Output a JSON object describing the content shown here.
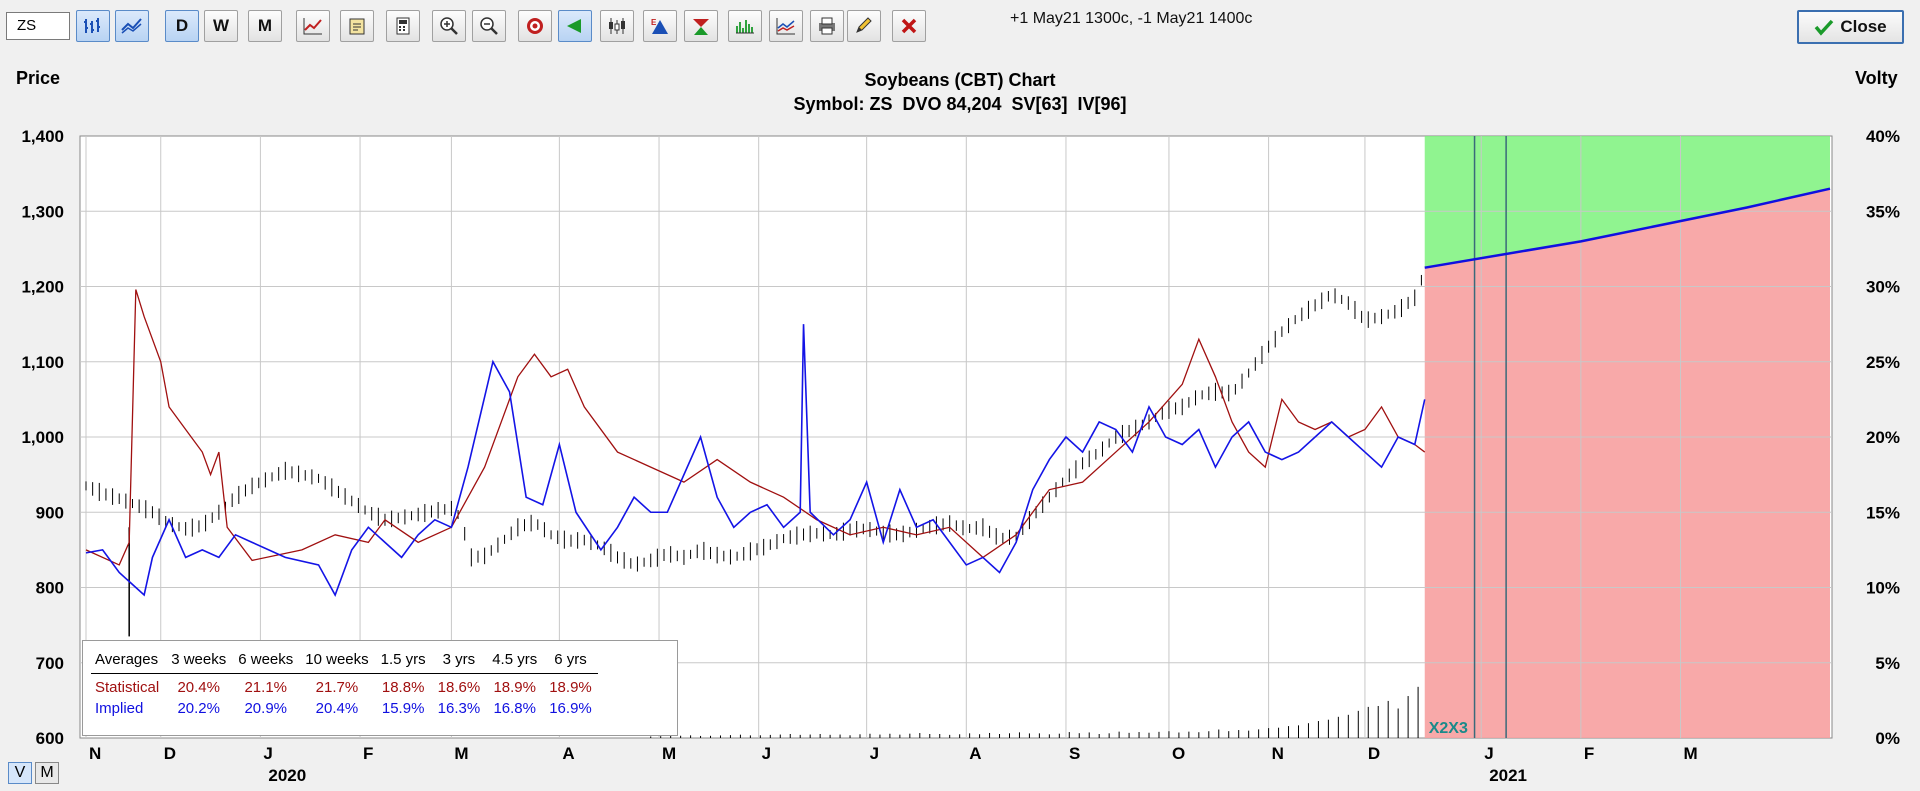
{
  "toolbar": {
    "symbol": "ZS",
    "period_buttons": [
      "D",
      "W",
      "M"
    ],
    "note": "+1 May21 1300c, -1 May21 1400c",
    "close_label": "Close"
  },
  "chart_data": {
    "type": "line",
    "title": "Soybeans (CBT) Chart",
    "subtitle": "Symbol: ZS  DVO 84,204  SV[63]  IV[96]",
    "ylabel": "Price",
    "y2label": "Volty",
    "ylim": [
      600,
      1400
    ],
    "y2lim": [
      0,
      40
    ],
    "y_ticks": [
      "600",
      "700",
      "800",
      "900",
      "1,000",
      "1,100",
      "1,200",
      "1,300",
      "1,400"
    ],
    "y2_ticks": [
      "0%",
      "5%",
      "10%",
      "15%",
      "20%",
      "25%",
      "30%",
      "35%",
      "40%"
    ],
    "x_month_labels": [
      "N",
      "D",
      "J",
      "F",
      "M",
      "A",
      "M",
      "J",
      "J",
      "A",
      "S",
      "O",
      "N",
      "D",
      "J",
      "F",
      "M"
    ],
    "x_year_labels": [
      "2020",
      "2021"
    ],
    "grid": true,
    "price_series": {
      "name": "Price",
      "color": "#000000",
      "points": [
        [
          0,
          935
        ],
        [
          10,
          925
        ],
        [
          20,
          918
        ],
        [
          30,
          910
        ],
        [
          40,
          900
        ],
        [
          50,
          885
        ],
        [
          60,
          878
        ],
        [
          70,
          882
        ],
        [
          80,
          900
        ],
        [
          90,
          920
        ],
        [
          100,
          935
        ],
        [
          110,
          945
        ],
        [
          120,
          955
        ],
        [
          130,
          950
        ],
        [
          140,
          945
        ],
        [
          150,
          930
        ],
        [
          160,
          915
        ],
        [
          170,
          900
        ],
        [
          180,
          890
        ],
        [
          190,
          893
        ],
        [
          200,
          897
        ],
        [
          210,
          902
        ],
        [
          220,
          905
        ],
        [
          225,
          895
        ],
        [
          232,
          840
        ],
        [
          240,
          842
        ],
        [
          250,
          860
        ],
        [
          260,
          880
        ],
        [
          270,
          887
        ],
        [
          280,
          870
        ],
        [
          290,
          862
        ],
        [
          300,
          863
        ],
        [
          310,
          855
        ],
        [
          320,
          840
        ],
        [
          330,
          830
        ],
        [
          340,
          836
        ],
        [
          350,
          845
        ],
        [
          360,
          840
        ],
        [
          370,
          850
        ],
        [
          380,
          843
        ],
        [
          390,
          840
        ],
        [
          400,
          848
        ],
        [
          410,
          855
        ],
        [
          420,
          865
        ],
        [
          430,
          870
        ],
        [
          440,
          872
        ],
        [
          450,
          870
        ],
        [
          460,
          877
        ],
        [
          470,
          878
        ],
        [
          480,
          873
        ],
        [
          490,
          870
        ],
        [
          500,
          876
        ],
        [
          510,
          882
        ],
        [
          520,
          885
        ],
        [
          530,
          878
        ],
        [
          540,
          880
        ],
        [
          550,
          865
        ],
        [
          560,
          868
        ],
        [
          570,
          895
        ],
        [
          580,
          920
        ],
        [
          590,
          945
        ],
        [
          600,
          965
        ],
        [
          610,
          980
        ],
        [
          620,
          1000
        ],
        [
          630,
          1010
        ],
        [
          640,
          1020
        ],
        [
          650,
          1035
        ],
        [
          660,
          1040
        ],
        [
          670,
          1055
        ],
        [
          680,
          1060
        ],
        [
          690,
          1058
        ],
        [
          700,
          1085
        ],
        [
          710,
          1115
        ],
        [
          720,
          1140
        ],
        [
          730,
          1160
        ],
        [
          740,
          1175
        ],
        [
          750,
          1190
        ],
        [
          760,
          1178
        ],
        [
          770,
          1155
        ],
        [
          780,
          1160
        ],
        [
          790,
          1168
        ],
        [
          800,
          1185
        ],
        [
          806,
          1220
        ]
      ]
    },
    "statistical_series": {
      "name": "Statistical",
      "color": "#a01010",
      "points": [
        [
          0,
          12.5
        ],
        [
          20,
          11.5
        ],
        [
          26,
          13
        ],
        [
          30,
          29.8
        ],
        [
          35,
          28
        ],
        [
          45,
          25
        ],
        [
          50,
          22
        ],
        [
          60,
          20.5
        ],
        [
          70,
          19
        ],
        [
          75,
          17.5
        ],
        [
          80,
          19
        ],
        [
          85,
          14
        ],
        [
          100,
          11.8
        ],
        [
          130,
          12.5
        ],
        [
          150,
          13.5
        ],
        [
          170,
          13
        ],
        [
          180,
          14.5
        ],
        [
          200,
          13
        ],
        [
          220,
          14
        ],
        [
          240,
          18
        ],
        [
          260,
          24
        ],
        [
          270,
          25.5
        ],
        [
          280,
          24
        ],
        [
          290,
          24.5
        ],
        [
          300,
          22
        ],
        [
          320,
          19
        ],
        [
          340,
          18
        ],
        [
          360,
          17
        ],
        [
          380,
          18.5
        ],
        [
          400,
          17
        ],
        [
          420,
          16
        ],
        [
          440,
          14.5
        ],
        [
          460,
          13.5
        ],
        [
          480,
          14
        ],
        [
          500,
          13.5
        ],
        [
          520,
          14
        ],
        [
          540,
          12
        ],
        [
          560,
          13.5
        ],
        [
          580,
          16.5
        ],
        [
          600,
          17
        ],
        [
          620,
          19
        ],
        [
          640,
          21
        ],
        [
          660,
          23.5
        ],
        [
          670,
          26.5
        ],
        [
          680,
          24
        ],
        [
          690,
          21
        ],
        [
          700,
          19
        ],
        [
          710,
          18
        ],
        [
          720,
          22.5
        ],
        [
          730,
          21
        ],
        [
          740,
          20.5
        ],
        [
          750,
          21
        ],
        [
          760,
          20
        ],
        [
          770,
          20.5
        ],
        [
          780,
          22
        ],
        [
          790,
          20
        ],
        [
          800,
          19.5
        ],
        [
          806,
          19
        ]
      ]
    },
    "implied_series": {
      "name": "Implied",
      "color": "#1414e6",
      "points": [
        [
          0,
          12.3
        ],
        [
          10,
          12.5
        ],
        [
          20,
          11
        ],
        [
          35,
          9.5
        ],
        [
          40,
          12
        ],
        [
          50,
          14.5
        ],
        [
          60,
          12
        ],
        [
          70,
          12.5
        ],
        [
          80,
          12
        ],
        [
          90,
          13.5
        ],
        [
          100,
          13
        ],
        [
          120,
          12
        ],
        [
          140,
          11.5
        ],
        [
          150,
          9.5
        ],
        [
          160,
          12.5
        ],
        [
          170,
          14
        ],
        [
          180,
          13
        ],
        [
          190,
          12
        ],
        [
          200,
          13.5
        ],
        [
          210,
          14.5
        ],
        [
          220,
          14
        ],
        [
          230,
          18
        ],
        [
          245,
          25
        ],
        [
          255,
          23
        ],
        [
          265,
          16
        ],
        [
          275,
          15.5
        ],
        [
          285,
          19.5
        ],
        [
          295,
          15
        ],
        [
          310,
          12.5
        ],
        [
          320,
          14
        ],
        [
          330,
          16
        ],
        [
          340,
          15
        ],
        [
          350,
          15
        ],
        [
          370,
          20
        ],
        [
          380,
          16
        ],
        [
          390,
          14
        ],
        [
          400,
          15
        ],
        [
          410,
          15.5
        ],
        [
          420,
          14
        ],
        [
          430,
          15
        ],
        [
          432,
          27.5
        ],
        [
          436,
          15
        ],
        [
          450,
          13.5
        ],
        [
          460,
          14.5
        ],
        [
          470,
          17
        ],
        [
          480,
          13
        ],
        [
          490,
          16.5
        ],
        [
          500,
          14
        ],
        [
          510,
          14.5
        ],
        [
          520,
          13
        ],
        [
          530,
          11.5
        ],
        [
          540,
          12
        ],
        [
          550,
          11
        ],
        [
          560,
          13
        ],
        [
          570,
          16.5
        ],
        [
          580,
          18.5
        ],
        [
          590,
          20
        ],
        [
          600,
          19
        ],
        [
          610,
          21
        ],
        [
          620,
          20.5
        ],
        [
          630,
          19
        ],
        [
          640,
          22
        ],
        [
          650,
          20
        ],
        [
          660,
          19.5
        ],
        [
          670,
          20.5
        ],
        [
          680,
          18
        ],
        [
          690,
          20
        ],
        [
          700,
          21
        ],
        [
          710,
          19
        ],
        [
          720,
          18.5
        ],
        [
          730,
          19
        ],
        [
          740,
          20
        ],
        [
          750,
          21
        ],
        [
          760,
          20
        ],
        [
          770,
          19
        ],
        [
          780,
          18
        ],
        [
          790,
          20
        ],
        [
          800,
          19.5
        ],
        [
          806,
          22.5
        ]
      ]
    },
    "projection_series": {
      "name": "Projection",
      "color": "#1010e0",
      "points": [
        [
          806,
          1225
        ],
        [
          900,
          1260
        ],
        [
          1000,
          1305
        ],
        [
          1050,
          1330
        ]
      ]
    },
    "volume_bars": [
      0.15,
      0.2,
      0.18,
      0.25,
      0.22,
      0.3,
      0.28,
      0.26,
      0.3,
      0.32,
      0.35,
      0.3,
      0.33,
      0.38,
      0.4,
      0.35,
      0.42,
      0.38,
      0.45,
      0.5,
      0.48,
      0.55,
      0.6,
      0.7,
      0.9,
      1.2,
      1.6,
      2.2,
      2.8,
      3.4
    ],
    "projection_zone": {
      "colors": {
        "upper": "#7df27d",
        "lower": "#f7a0a0"
      }
    },
    "strike_markers": [
      "X2",
      "X3"
    ],
    "averages_table": {
      "headers": [
        "Averages",
        "3 weeks",
        "6 weeks",
        "10 weeks",
        "1.5 yrs",
        "3 yrs",
        "4.5 yrs",
        "6 yrs"
      ],
      "rows": [
        {
          "label": "Statistical",
          "values": [
            "20.4%",
            "21.1%",
            "21.7%",
            "18.8%",
            "18.6%",
            "18.9%",
            "18.9%"
          ]
        },
        {
          "label": "Implied",
          "values": [
            "20.2%",
            "20.9%",
            "20.4%",
            "15.9%",
            "16.3%",
            "16.8%",
            "16.9%"
          ]
        }
      ]
    }
  },
  "footer": {
    "v_label": "V",
    "m_label": "M"
  }
}
